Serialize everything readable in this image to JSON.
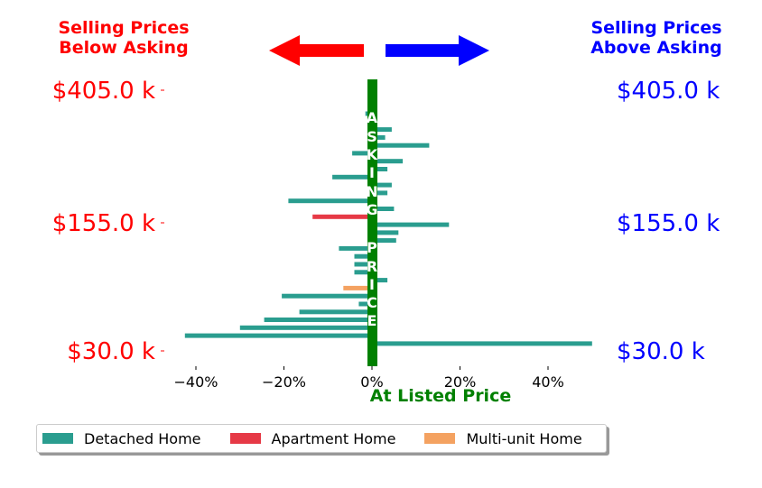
{
  "header": {
    "left": "Selling Prices\nBelow Asking",
    "right": "Selling Prices\nAbove Asking",
    "left_color": "#ff0000",
    "right_color": "#0000ff"
  },
  "colors": {
    "detached": "#2a9d8f",
    "apartment": "#e63946",
    "multi": "#f4a261",
    "center_band": "#008000"
  },
  "chart_data": {
    "type": "bar",
    "orientation": "horizontal",
    "xlabel": "At Listed Price",
    "x_ticks": [
      "−40%",
      "−20%",
      "0%",
      "20%",
      "40%"
    ],
    "x_tick_values": [
      -40,
      -20,
      0,
      20,
      40
    ],
    "xlim": [
      -45,
      52
    ],
    "center_text": [
      "A",
      "S",
      "K",
      "I",
      "N",
      "G",
      "",
      "P",
      "R",
      "I",
      "C",
      "E"
    ],
    "y_labels_left": [
      "$405.0 k",
      "$155.0 k",
      "$30.0 k"
    ],
    "y_labels_right": [
      "$405.0 k",
      "$155.0 k",
      "$30.0 k"
    ],
    "series_names": [
      "Detached Home",
      "Apartment Home",
      "Multi-unit Home"
    ],
    "bars": [
      {
        "value": -1.5,
        "type": "detached"
      },
      {
        "value": -1,
        "type": "detached"
      },
      {
        "value": 4.5,
        "type": "detached"
      },
      {
        "value": 3,
        "type": "detached"
      },
      {
        "value": 13,
        "type": "detached"
      },
      {
        "value": -4.5,
        "type": "detached"
      },
      {
        "value": 7,
        "type": "detached"
      },
      {
        "value": 3.5,
        "type": "detached"
      },
      {
        "value": -9,
        "type": "detached"
      },
      {
        "value": 4.5,
        "type": "detached"
      },
      {
        "value": 3.5,
        "type": "detached"
      },
      {
        "value": -19,
        "type": "detached"
      },
      {
        "value": 5,
        "type": "detached"
      },
      {
        "value": -13.5,
        "type": "apartment"
      },
      {
        "value": 17.5,
        "type": "detached"
      },
      {
        "value": 6,
        "type": "detached"
      },
      {
        "value": 5.5,
        "type": "detached"
      },
      {
        "value": -7.5,
        "type": "detached"
      },
      {
        "value": -4,
        "type": "detached"
      },
      {
        "value": -4,
        "type": "detached"
      },
      {
        "value": -4,
        "type": "detached"
      },
      {
        "value": 3.5,
        "type": "detached"
      },
      {
        "value": -6.5,
        "type": "multi"
      },
      {
        "value": -20.5,
        "type": "detached"
      },
      {
        "value": -3,
        "type": "detached"
      },
      {
        "value": -16.5,
        "type": "detached"
      },
      {
        "value": -24.5,
        "type": "detached"
      },
      {
        "value": -30,
        "type": "detached"
      },
      {
        "value": -42.5,
        "type": "detached"
      },
      {
        "value": 50,
        "type": "detached"
      }
    ]
  }
}
